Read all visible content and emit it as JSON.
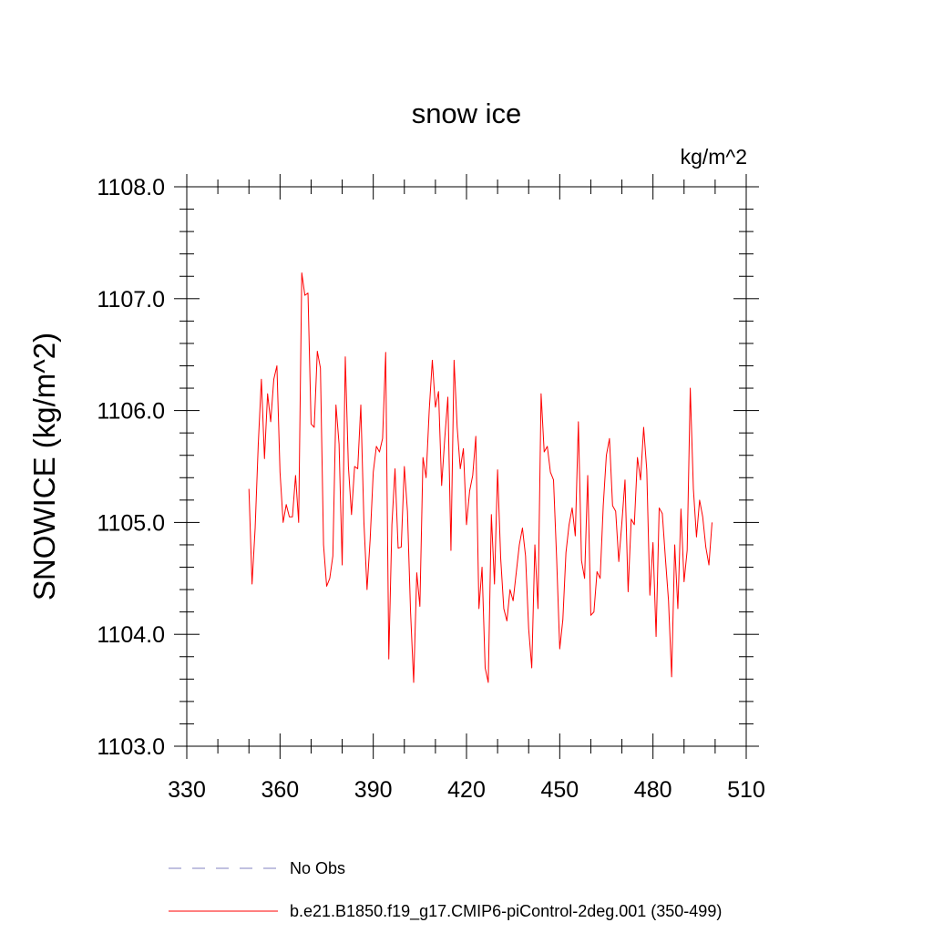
{
  "chart_data": {
    "type": "line",
    "title": "snow ice",
    "units": "kg/m^2",
    "ylabel": "SNOWICE  (kg/m^2)",
    "xlabel": "",
    "xlim": [
      330,
      510
    ],
    "ylim": [
      1103.0,
      1108.0
    ],
    "x_ticks": [
      330,
      360,
      390,
      420,
      450,
      480,
      510
    ],
    "y_ticks": [
      1103.0,
      1104.0,
      1105.0,
      1106.0,
      1107.0,
      1108.0
    ],
    "y_tick_labels": [
      "1103.0",
      "1104.0",
      "1105.0",
      "1106.0",
      "1107.0",
      "1108.0"
    ],
    "x_minor_step": 10,
    "y_minor_step": 0.2,
    "grid": false,
    "legend_position": "bottom",
    "legend": [
      {
        "name": "No Obs",
        "color": "#8080c0",
        "dash": true
      },
      {
        "name": "b.e21.B1850.f19_g17.CMIP6-piControl-2deg.001 (350-499)",
        "color": "#ff0000",
        "dash": false
      }
    ],
    "series": [
      {
        "name": "b.e21.B1850.f19_g17.CMIP6-piControl-2deg.001 (350-499)",
        "color": "#ff0000",
        "x_start": 350,
        "x_step": 1,
        "values": [
          1105.3,
          1104.45,
          1104.95,
          1105.7,
          1106.28,
          1105.57,
          1106.15,
          1105.9,
          1106.28,
          1106.4,
          1105.45,
          1105.0,
          1105.16,
          1105.05,
          1105.05,
          1105.42,
          1105.0,
          1107.23,
          1107.03,
          1107.05,
          1105.88,
          1105.85,
          1106.53,
          1106.38,
          1104.8,
          1104.43,
          1104.5,
          1104.7,
          1106.05,
          1105.7,
          1104.62,
          1106.48,
          1105.5,
          1105.07,
          1105.5,
          1105.48,
          1106.05,
          1105.0,
          1104.4,
          1104.85,
          1105.45,
          1105.68,
          1105.63,
          1105.75,
          1106.52,
          1103.78,
          1104.98,
          1105.48,
          1104.77,
          1104.78,
          1105.5,
          1105.1,
          1104.2,
          1103.57,
          1104.55,
          1104.25,
          1105.58,
          1105.4,
          1106.0,
          1106.45,
          1106.03,
          1106.17,
          1105.33,
          1105.75,
          1106.12,
          1104.75,
          1106.45,
          1105.85,
          1105.48,
          1105.66,
          1104.98,
          1105.28,
          1105.42,
          1105.77,
          1104.23,
          1104.6,
          1103.7,
          1103.57,
          1105.07,
          1104.45,
          1105.47,
          1104.68,
          1104.23,
          1104.12,
          1104.4,
          1104.3,
          1104.55,
          1104.8,
          1104.95,
          1104.7,
          1104.05,
          1103.7,
          1104.8,
          1104.23,
          1106.15,
          1105.63,
          1105.68,
          1105.45,
          1105.38,
          1104.68,
          1103.87,
          1104.13,
          1104.73,
          1104.98,
          1105.13,
          1104.88,
          1105.9,
          1104.66,
          1104.5,
          1105.42,
          1104.17,
          1104.2,
          1104.56,
          1104.5,
          1105.15,
          1105.6,
          1105.75,
          1105.15,
          1105.1,
          1104.65,
          1105.0,
          1105.38,
          1104.38,
          1105.03,
          1104.98,
          1105.58,
          1105.38,
          1105.85,
          1105.47,
          1104.35,
          1104.82,
          1103.98,
          1105.13,
          1105.08,
          1104.68,
          1104.3,
          1103.62,
          1104.8,
          1104.23,
          1105.12,
          1104.47,
          1104.75,
          1106.2,
          1105.3,
          1104.87,
          1105.2,
          1105.05,
          1104.78,
          1104.62,
          1105.0
        ]
      }
    ]
  }
}
